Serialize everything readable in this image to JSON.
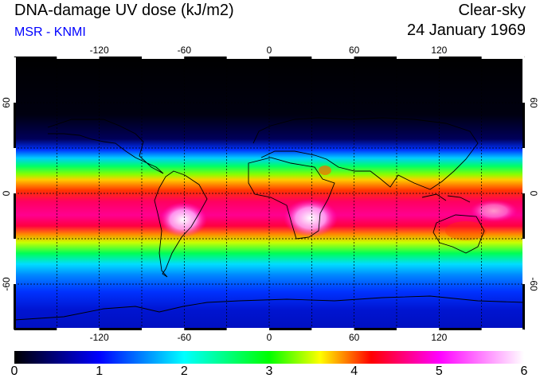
{
  "header": {
    "title": "DNA-damage UV dose (kJ/m2)",
    "source": "MSR - KNMI",
    "condition": "Clear-sky",
    "date": "24 January 1969"
  },
  "colors": {
    "source_text": "#0000ff",
    "frame": "#000000"
  },
  "map": {
    "lon_ticks": [
      "-120",
      "-60",
      "0",
      "60",
      "120"
    ],
    "lat_ticks": [
      "60",
      "0",
      "-60"
    ],
    "lat_ticks_right": [
      "60",
      "0",
      "-60"
    ],
    "lon_range": [
      -180,
      180
    ],
    "lat_range": [
      -90,
      90
    ]
  },
  "colorbar": {
    "labels": [
      "0",
      "1",
      "2",
      "3",
      "4",
      "5",
      "6"
    ],
    "min": 0,
    "max": 6,
    "stops": [
      "#000000",
      "#0000ff",
      "#00ffff",
      "#00ff00",
      "#ffff00",
      "#ff0000",
      "#ff00ff",
      "#ffffff"
    ]
  }
}
